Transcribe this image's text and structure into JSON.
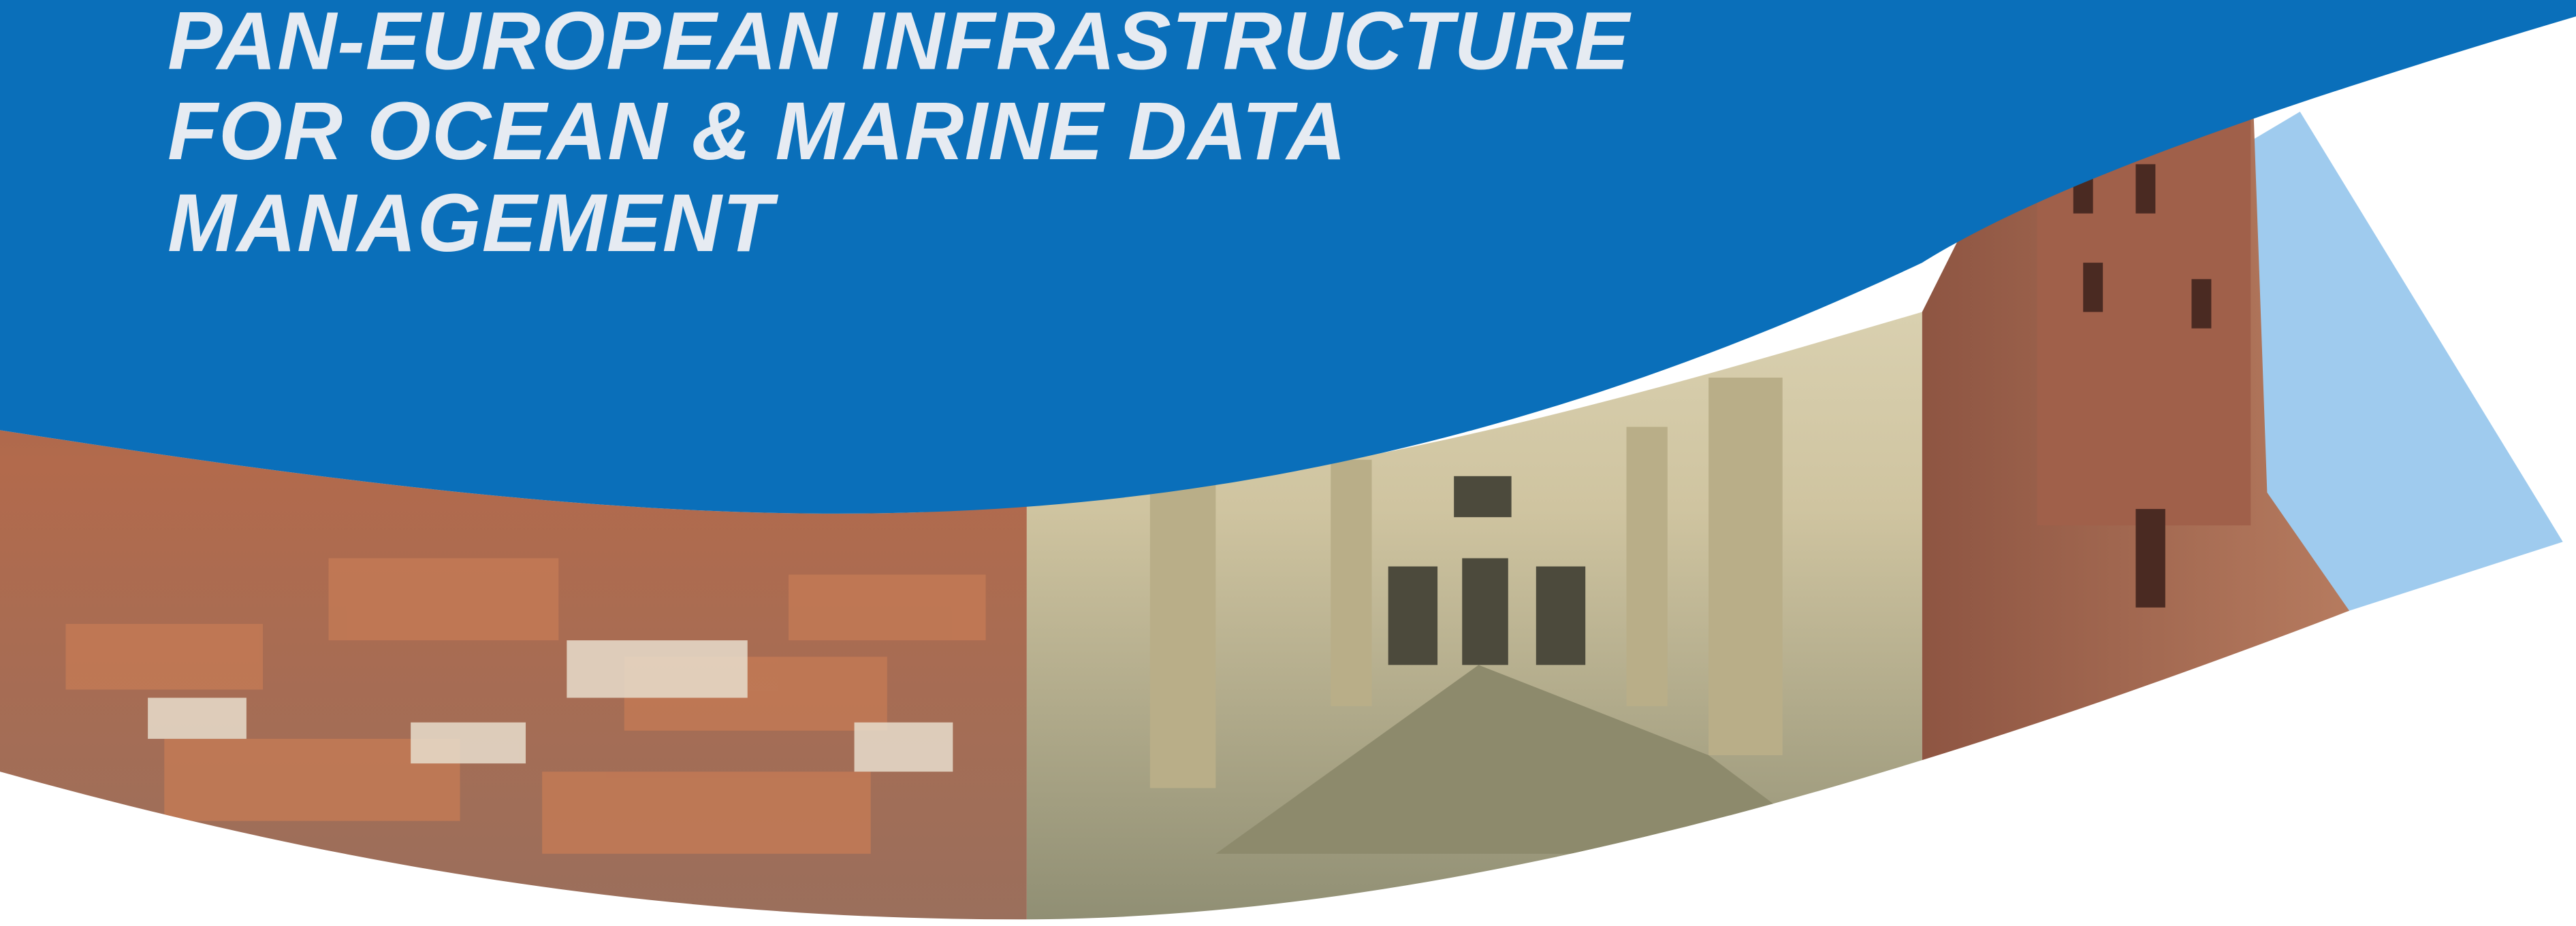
{
  "header": {
    "title_lines": [
      "PAN-EUROPEAN INFRASTRUCTURE",
      "FOR OCEAN & MARINE DATA",
      "MANAGEMENT"
    ]
  }
}
